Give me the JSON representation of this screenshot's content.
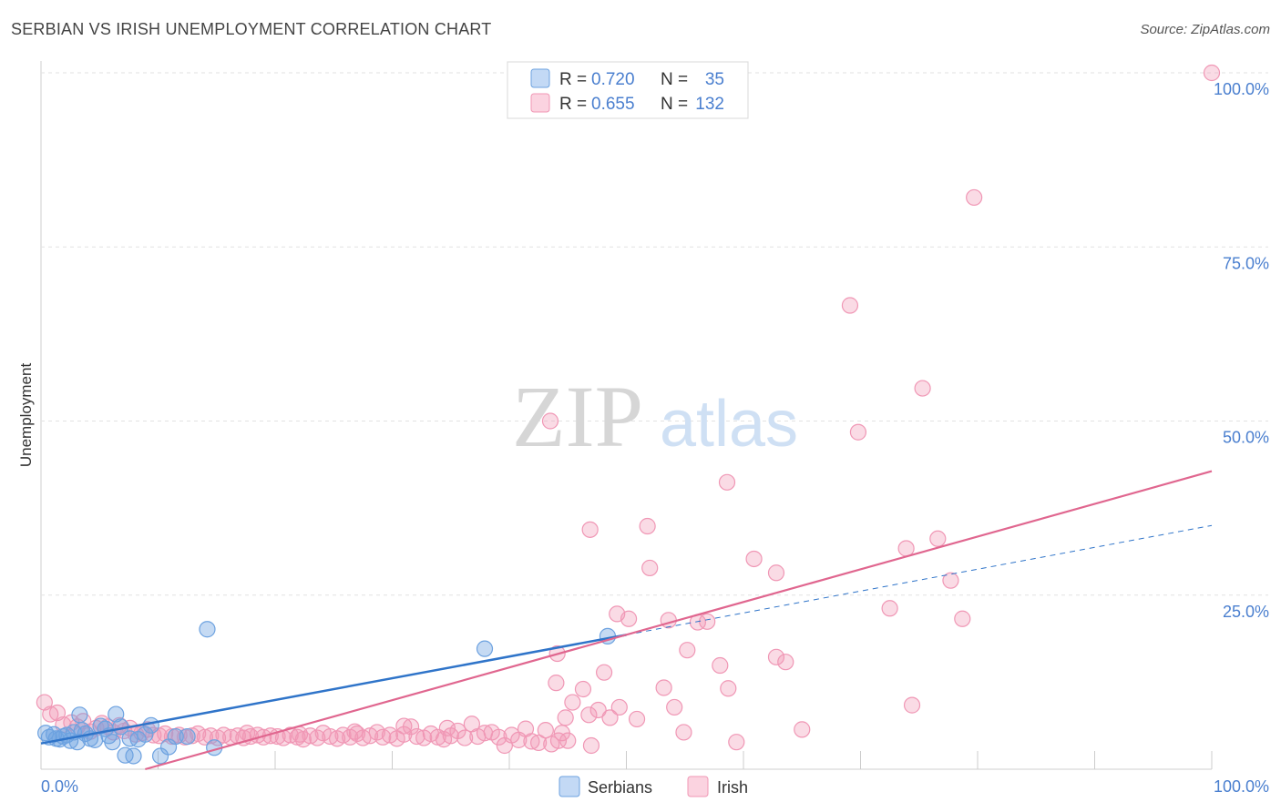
{
  "title": "SERBIAN VS IRISH UNEMPLOYMENT CORRELATION CHART",
  "source": "Source: ZipAtlas.com",
  "watermark": {
    "zip": "ZIP",
    "atlas": "atlas"
  },
  "colors": {
    "serbians": "#6da2e0",
    "irish": "#f097b5",
    "serbians_line": "#2f74c9",
    "irish_line": "#e0668f",
    "tick_label": "#4a7fcf"
  },
  "legend_top": [
    {
      "r_label": "R = ",
      "r_value": "0.720",
      "n_label": "N = ",
      "n_value": "35",
      "color": "serbians"
    },
    {
      "r_label": "R = ",
      "r_value": "0.655",
      "n_label": "N = ",
      "n_value": "132",
      "color": "irish"
    }
  ],
  "legend_bottom": [
    {
      "label": "Serbians",
      "color": "serbians"
    },
    {
      "label": "Irish",
      "color": "irish"
    }
  ],
  "chart_data": {
    "type": "scatter",
    "title": "SERBIAN VS IRISH UNEMPLOYMENT CORRELATION CHART",
    "xlabel": "",
    "ylabel": "Unemployment",
    "xlim": [
      0,
      100
    ],
    "ylim": [
      0,
      100
    ],
    "x_tick_labels": [
      {
        "value": 0,
        "label": "0.0%"
      },
      {
        "value": 100,
        "label": "100.0%"
      }
    ],
    "y_tick_labels": [
      {
        "value": 25,
        "label": "25.0%"
      },
      {
        "value": 50,
        "label": "50.0%"
      },
      {
        "value": 75,
        "label": "75.0%"
      },
      {
        "value": 100,
        "label": "100.0%"
      }
    ],
    "grid": true,
    "legend": "top-center",
    "series": [
      {
        "name": "Serbians",
        "r": 0.72,
        "n": 35,
        "trendline": {
          "x0": 0,
          "y0": 3.7,
          "x1": 50,
          "y1": 19.3,
          "extend_to": 100,
          "extend_y": 35.0
        },
        "points": [
          [
            0.4,
            5.2
          ],
          [
            0.7,
            4.6
          ],
          [
            1.1,
            5.0
          ],
          [
            1.3,
            4.4
          ],
          [
            1.6,
            4.3
          ],
          [
            1.9,
            4.7
          ],
          [
            2.2,
            4.9
          ],
          [
            2.5,
            4.1
          ],
          [
            2.8,
            5.3
          ],
          [
            3.1,
            3.9
          ],
          [
            3.3,
            7.8
          ],
          [
            3.5,
            5.6
          ],
          [
            3.8,
            5.1
          ],
          [
            4.2,
            4.4
          ],
          [
            4.6,
            4.2
          ],
          [
            5.1,
            6.2
          ],
          [
            5.5,
            5.8
          ],
          [
            5.8,
            4.8
          ],
          [
            6.1,
            3.9
          ],
          [
            6.4,
            7.9
          ],
          [
            6.8,
            6.1
          ],
          [
            7.2,
            2.0
          ],
          [
            7.6,
            4.4
          ],
          [
            7.9,
            1.9
          ],
          [
            8.3,
            4.3
          ],
          [
            8.9,
            5.0
          ],
          [
            9.4,
            6.3
          ],
          [
            10.2,
            1.9
          ],
          [
            10.9,
            3.2
          ],
          [
            11.5,
            4.7
          ],
          [
            12.5,
            4.7
          ],
          [
            14.2,
            20.1
          ],
          [
            14.8,
            3.1
          ],
          [
            37.9,
            17.3
          ],
          [
            48.4,
            19.1
          ]
        ]
      },
      {
        "name": "Irish",
        "r": 0.655,
        "n": 132,
        "trendline": {
          "x0": 8.9,
          "y0": 0,
          "x1": 100,
          "y1": 42.8
        },
        "points": [
          [
            0.3,
            9.6
          ],
          [
            0.8,
            7.9
          ],
          [
            1.4,
            8.1
          ],
          [
            1.9,
            6.4
          ],
          [
            2.6,
            6.7
          ],
          [
            3.1,
            6.1
          ],
          [
            3.6,
            6.9
          ],
          [
            4.2,
            5.4
          ],
          [
            4.7,
            5.9
          ],
          [
            5.2,
            6.6
          ],
          [
            5.7,
            6.1
          ],
          [
            6.2,
            5.3
          ],
          [
            6.7,
            6.3
          ],
          [
            7.1,
            5.5
          ],
          [
            7.6,
            5.9
          ],
          [
            8.1,
            5.0
          ],
          [
            8.6,
            5.2
          ],
          [
            9.1,
            5.7
          ],
          [
            9.6,
            4.9
          ],
          [
            10.1,
            4.8
          ],
          [
            10.6,
            5.1
          ],
          [
            11.2,
            4.7
          ],
          [
            11.8,
            4.9
          ],
          [
            12.3,
            4.6
          ],
          [
            12.9,
            4.8
          ],
          [
            13.4,
            5.1
          ],
          [
            14.0,
            4.6
          ],
          [
            14.5,
            4.8
          ],
          [
            15.1,
            4.5
          ],
          [
            15.6,
            4.9
          ],
          [
            16.2,
            4.6
          ],
          [
            16.8,
            4.8
          ],
          [
            17.3,
            4.5
          ],
          [
            17.9,
            4.7
          ],
          [
            18.5,
            4.9
          ],
          [
            19.0,
            4.6
          ],
          [
            19.6,
            4.8
          ],
          [
            20.2,
            4.7
          ],
          [
            20.7,
            4.5
          ],
          [
            21.3,
            4.9
          ],
          [
            21.9,
            4.6
          ],
          [
            22.4,
            4.3
          ],
          [
            23.0,
            4.8
          ],
          [
            23.6,
            4.5
          ],
          [
            24.1,
            5.2
          ],
          [
            24.7,
            4.7
          ],
          [
            25.3,
            4.4
          ],
          [
            25.8,
            4.9
          ],
          [
            26.4,
            4.6
          ],
          [
            27.0,
            5.1
          ],
          [
            27.5,
            4.5
          ],
          [
            28.1,
            4.8
          ],
          [
            28.7,
            5.3
          ],
          [
            29.2,
            4.6
          ],
          [
            29.8,
            4.9
          ],
          [
            30.4,
            4.4
          ],
          [
            31.0,
            5.0
          ],
          [
            31.6,
            6.1
          ],
          [
            32.1,
            4.7
          ],
          [
            32.7,
            4.5
          ],
          [
            33.3,
            5.1
          ],
          [
            33.9,
            4.6
          ],
          [
            34.4,
            4.3
          ],
          [
            35.0,
            4.8
          ],
          [
            35.6,
            5.5
          ],
          [
            36.2,
            4.5
          ],
          [
            36.8,
            6.5
          ],
          [
            37.3,
            4.7
          ],
          [
            37.9,
            5.2
          ],
          [
            38.5,
            5.3
          ],
          [
            39.1,
            4.6
          ],
          [
            39.6,
            3.4
          ],
          [
            40.2,
            4.9
          ],
          [
            40.8,
            4.2
          ],
          [
            41.4,
            5.8
          ],
          [
            41.9,
            4.0
          ],
          [
            42.5,
            3.8
          ],
          [
            43.1,
            5.6
          ],
          [
            43.6,
            3.6
          ],
          [
            44.2,
            4.1
          ],
          [
            44.8,
            7.4
          ],
          [
            45.4,
            9.6
          ],
          [
            47.0,
            3.4
          ],
          [
            44.1,
            16.6
          ],
          [
            44.0,
            12.4
          ],
          [
            46.3,
            11.5
          ],
          [
            46.8,
            7.8
          ],
          [
            47.6,
            8.5
          ],
          [
            48.1,
            13.9
          ],
          [
            48.6,
            7.4
          ],
          [
            49.4,
            8.9
          ],
          [
            50.9,
            7.2
          ],
          [
            46.9,
            34.4
          ],
          [
            49.2,
            22.3
          ],
          [
            50.2,
            21.6
          ],
          [
            51.8,
            34.9
          ],
          [
            52.0,
            28.9
          ],
          [
            53.2,
            11.7
          ],
          [
            53.6,
            21.4
          ],
          [
            54.1,
            8.9
          ],
          [
            54.9,
            5.3
          ],
          [
            55.2,
            17.1
          ],
          [
            56.1,
            21.1
          ],
          [
            56.9,
            21.2
          ],
          [
            58.0,
            14.9
          ],
          [
            58.6,
            41.2
          ],
          [
            58.7,
            11.6
          ],
          [
            59.4,
            3.9
          ],
          [
            60.9,
            30.2
          ],
          [
            62.8,
            28.2
          ],
          [
            62.8,
            16.1
          ],
          [
            63.6,
            15.4
          ],
          [
            65.0,
            5.7
          ],
          [
            69.1,
            66.6
          ],
          [
            69.8,
            48.4
          ],
          [
            72.5,
            23.1
          ],
          [
            73.9,
            31.7
          ],
          [
            74.4,
            9.2
          ],
          [
            75.3,
            54.7
          ],
          [
            76.6,
            33.1
          ],
          [
            77.7,
            27.1
          ],
          [
            78.7,
            21.6
          ],
          [
            79.7,
            82.1
          ],
          [
            100.0,
            100.0
          ],
          [
            44.5,
            5.2
          ],
          [
            45.0,
            4.1
          ],
          [
            34.7,
            5.9
          ],
          [
            31.0,
            6.2
          ],
          [
            26.8,
            5.4
          ],
          [
            22.1,
            5.0
          ],
          [
            17.6,
            5.2
          ],
          [
            43.5,
            50.0
          ]
        ]
      }
    ]
  }
}
